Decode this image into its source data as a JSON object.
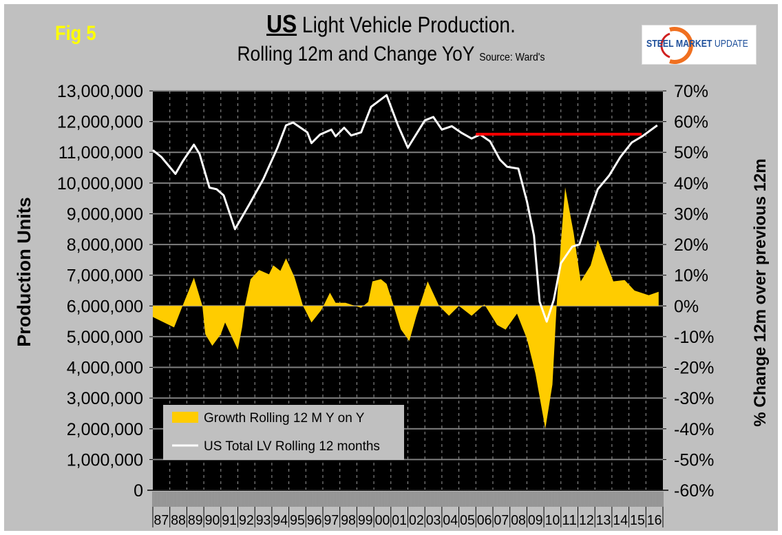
{
  "header": {
    "fig_label": "Fig 5",
    "title_bold": "US",
    "title_rest": " Light Vehicle Production.",
    "subtitle": "Rolling 12m and Change YoY",
    "source": "Source: Ward's",
    "logo_text_bold": "STEEL MARKET",
    "logo_text_rest": " UPDATE"
  },
  "colors": {
    "background": "#c0c0c0",
    "plot_background": "#000000",
    "growth_fill": "#ffcc00",
    "production_line": "#ffffff",
    "reference_line": "#ff0000",
    "gridline": "#808080",
    "fig_label": "#ffff00"
  },
  "chart_data": {
    "type": "area+line",
    "ylabel": "Production Units",
    "y2label": "% Change 12m over previous 12m",
    "ylim": [
      0,
      13000000
    ],
    "y2lim": [
      -60,
      70
    ],
    "yticks": [
      "0",
      "1,000,000",
      "2,000,000",
      "3,000,000",
      "4,000,000",
      "5,000,000",
      "6,000,000",
      "7,000,000",
      "8,000,000",
      "9,000,000",
      "10,000,000",
      "11,000,000",
      "12,000,000",
      "13,000,000"
    ],
    "y2ticks": [
      "-60%",
      "-50%",
      "-40%",
      "-30%",
      "-20%",
      "-10%",
      "0%",
      "10%",
      "20%",
      "30%",
      "40%",
      "50%",
      "60%",
      "70%"
    ],
    "xlim": [
      "1987-01",
      "2017-01"
    ],
    "xtick_labels": [
      "87",
      "88",
      "89",
      "90",
      "91",
      "92",
      "93",
      "94",
      "95",
      "96",
      "97",
      "98",
      "99",
      "00",
      "01",
      "02",
      "03",
      "04",
      "05",
      "06",
      "07",
      "08",
      "09",
      "10",
      "11",
      "12",
      "13",
      "14",
      "15",
      "16"
    ],
    "grid": "horizontal solid, vertical dashed",
    "legend_position": "bottom-left",
    "series": [
      {
        "name": "Growth Rolling 12 M Y on Y",
        "type": "area",
        "axis": "right",
        "points": [
          [
            "1987-01",
            -3.6
          ],
          [
            "1988-04",
            -7
          ],
          [
            "1988-10",
            0
          ],
          [
            "1989-06",
            9.2
          ],
          [
            "1989-12",
            0
          ],
          [
            "1990-02",
            -9.2
          ],
          [
            "1990-07",
            -13
          ],
          [
            "1991-01",
            -9.2
          ],
          [
            "1991-04",
            -5.4
          ],
          [
            "1992-01",
            -14.3
          ],
          [
            "1992-04",
            -7
          ],
          [
            "1992-06",
            0
          ],
          [
            "1992-10",
            8.7
          ],
          [
            "1993-04",
            11.7
          ],
          [
            "1993-11",
            10.3
          ],
          [
            "1994-02",
            13.2
          ],
          [
            "1994-07",
            11.4
          ],
          [
            "1994-11",
            15.5
          ],
          [
            "1995-05",
            9.4
          ],
          [
            "1995-11",
            0
          ],
          [
            "1996-05",
            -5.4
          ],
          [
            "1996-12",
            -1.3
          ],
          [
            "1997-06",
            4.3
          ],
          [
            "1997-10",
            1
          ],
          [
            "1998-05",
            1
          ],
          [
            "1999-04",
            -0.6
          ],
          [
            "1999-09",
            1.3
          ],
          [
            "1999-12",
            8
          ],
          [
            "2000-06",
            8.7
          ],
          [
            "2000-10",
            7.2
          ],
          [
            "2001-03",
            0
          ],
          [
            "2001-08",
            -7.6
          ],
          [
            "2002-02",
            -11.4
          ],
          [
            "2002-07",
            -3.2
          ],
          [
            "2003-03",
            8
          ],
          [
            "2003-11",
            0
          ],
          [
            "2004-06",
            -3.2
          ],
          [
            "2005-01",
            0
          ],
          [
            "2005-10",
            -3.2
          ],
          [
            "2006-07",
            0.5
          ],
          [
            "2007-04",
            -6.2
          ],
          [
            "2007-10",
            -7.7
          ],
          [
            "2008-06",
            -2.5
          ],
          [
            "2009-01",
            -10.7
          ],
          [
            "2009-07",
            -22
          ],
          [
            "2010-02",
            -40
          ],
          [
            "2010-07",
            -25.6
          ],
          [
            "2010-10",
            0
          ],
          [
            "2011-01",
            20.6
          ],
          [
            "2011-04",
            38.6
          ],
          [
            "2011-10",
            23.8
          ],
          [
            "2012-03",
            8
          ],
          [
            "2012-10",
            13.2
          ],
          [
            "2013-03",
            21.5
          ],
          [
            "2013-09",
            14
          ],
          [
            "2014-02",
            8
          ],
          [
            "2014-10",
            8.4
          ],
          [
            "2015-05",
            5
          ],
          [
            "2016-03",
            3.5
          ],
          [
            "2016-10",
            4.6
          ]
        ]
      },
      {
        "name": "US Total LV Rolling 12 months",
        "type": "line",
        "axis": "left",
        "points": [
          [
            "1987-01",
            11070000
          ],
          [
            "1987-07",
            10850000
          ],
          [
            "1988-05",
            10300000
          ],
          [
            "1988-10",
            10700000
          ],
          [
            "1989-06",
            11250000
          ],
          [
            "1989-10",
            10950000
          ],
          [
            "1990-05",
            9850000
          ],
          [
            "1990-10",
            9800000
          ],
          [
            "1991-03",
            9600000
          ],
          [
            "1991-11",
            8500000
          ],
          [
            "1992-09",
            9300000
          ],
          [
            "1993-07",
            10130000
          ],
          [
            "1994-05",
            11150000
          ],
          [
            "1994-11",
            11880000
          ],
          [
            "1995-04",
            11970000
          ],
          [
            "1996-02",
            11650000
          ],
          [
            "1996-05",
            11300000
          ],
          [
            "1996-11",
            11580000
          ],
          [
            "1997-07",
            11740000
          ],
          [
            "1997-10",
            11520000
          ],
          [
            "1998-04",
            11800000
          ],
          [
            "1998-09",
            11550000
          ],
          [
            "1999-04",
            11650000
          ],
          [
            "1999-11",
            12480000
          ],
          [
            "2000-10",
            12860000
          ],
          [
            "2001-06",
            11880000
          ],
          [
            "2002-01",
            11150000
          ],
          [
            "2003-01",
            12040000
          ],
          [
            "2003-07",
            12150000
          ],
          [
            "2004-01",
            11740000
          ],
          [
            "2004-08",
            11850000
          ],
          [
            "2005-03",
            11630000
          ],
          [
            "2005-10",
            11450000
          ],
          [
            "2006-04",
            11580000
          ],
          [
            "2006-11",
            11360000
          ],
          [
            "2007-06",
            10760000
          ],
          [
            "2007-11",
            10530000
          ],
          [
            "2008-07",
            10470000
          ],
          [
            "2009-01",
            9410000
          ],
          [
            "2009-06",
            8290000
          ],
          [
            "2009-10",
            6140000
          ],
          [
            "2010-03",
            5490000
          ],
          [
            "2010-08",
            6200000
          ],
          [
            "2011-01",
            7390000
          ],
          [
            "2011-09",
            7930000
          ],
          [
            "2012-02",
            8000000
          ],
          [
            "2012-10",
            9120000
          ],
          [
            "2013-03",
            9800000
          ],
          [
            "2013-11",
            10240000
          ],
          [
            "2014-07",
            10850000
          ],
          [
            "2015-03",
            11320000
          ],
          [
            "2015-11",
            11540000
          ],
          [
            "2016-09",
            11880000
          ]
        ]
      }
    ],
    "annotations": [
      {
        "type": "horizontal-line",
        "color": "#ff0000",
        "from": "2006-01",
        "to": "2015-10",
        "value": 11590000
      }
    ]
  }
}
